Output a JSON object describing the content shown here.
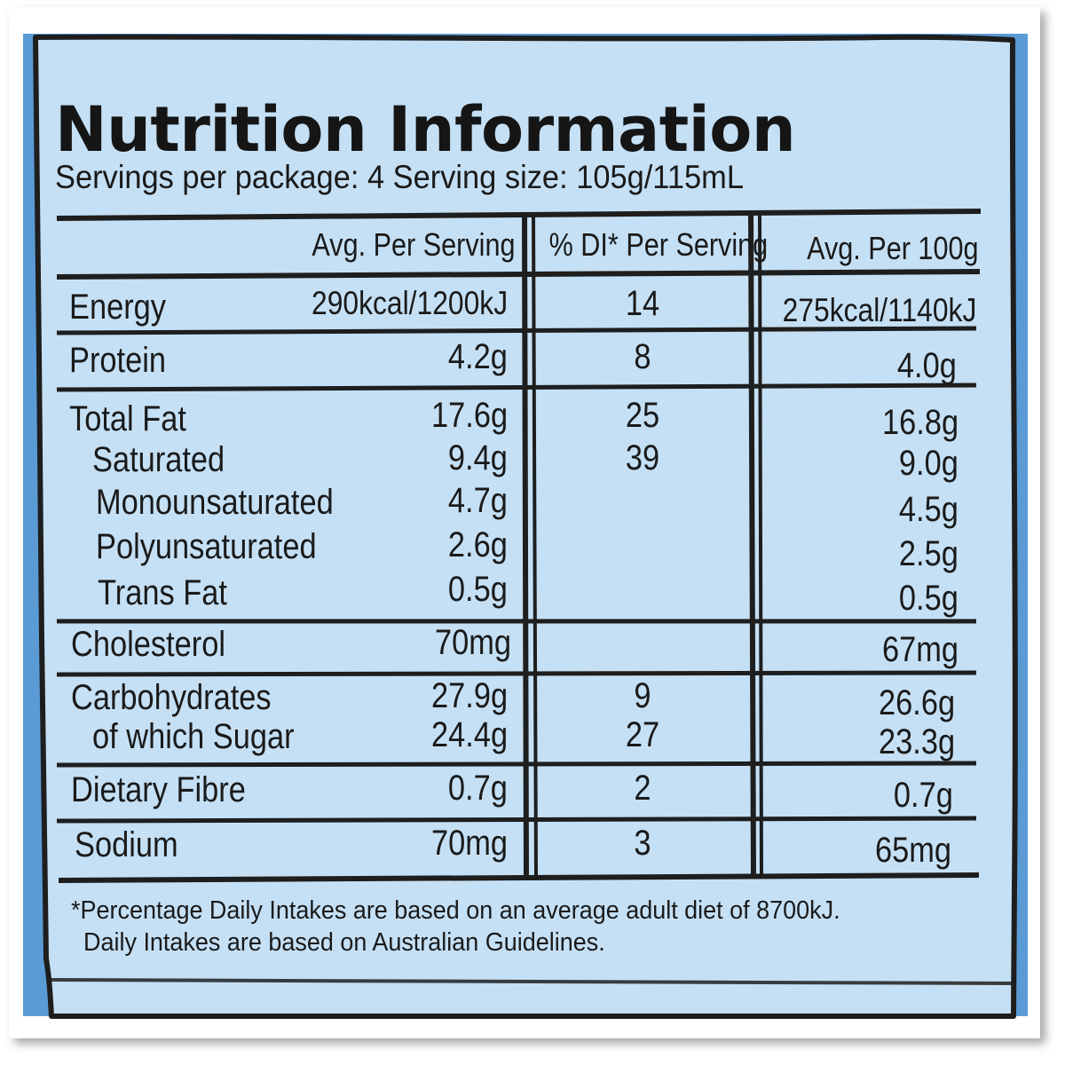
{
  "title": "Nutrition Information",
  "subtitle": "Servings per package: 4 Serving size: 105g/115mL",
  "colors": {
    "panel_fill": "#c5e0f5",
    "outer_blue": "#5b9bd5",
    "ink": "#1a1a1a",
    "frame": "#ffffff"
  },
  "headers": {
    "per_serving": "Avg. Per Serving",
    "di_per_serving": "% DI* Per Serving",
    "per_100g": "Avg. Per 100g"
  },
  "rows": {
    "energy": {
      "label": "Energy",
      "per_serving": "290kcal/1200kJ",
      "di": "14",
      "per_100g": "275kcal/1140kJ"
    },
    "protein": {
      "label": "Protein",
      "per_serving": "4.2g",
      "di": "8",
      "per_100g": "4.0g"
    },
    "total_fat": {
      "label": "Total Fat",
      "per_serving": "17.6g",
      "di": "25",
      "per_100g": "16.8g"
    },
    "saturated": {
      "label": "Saturated",
      "per_serving": "9.4g",
      "di": "39",
      "per_100g": "9.0g"
    },
    "mono": {
      "label": "Monounsaturated",
      "per_serving": "4.7g",
      "di": "",
      "per_100g": "4.5g"
    },
    "poly": {
      "label": "Polyunsaturated",
      "per_serving": "2.6g",
      "di": "",
      "per_100g": "2.5g"
    },
    "trans": {
      "label": "Trans Fat",
      "per_serving": "0.5g",
      "di": "",
      "per_100g": "0.5g"
    },
    "cholesterol": {
      "label": "Cholesterol",
      "per_serving": "70mg",
      "di": "",
      "per_100g": "67mg"
    },
    "carbohydrates": {
      "label": "Carbohydrates",
      "per_serving": "27.9g",
      "di": "9",
      "per_100g": "26.6g"
    },
    "sugar": {
      "label": "of which Sugar",
      "per_serving": "24.4g",
      "di": "27",
      "per_100g": "23.3g"
    },
    "fibre": {
      "label": "Dietary Fibre",
      "per_serving": "0.7g",
      "di": "2",
      "per_100g": "0.7g"
    },
    "sodium": {
      "label": "Sodium",
      "per_serving": "70mg",
      "di": "3",
      "per_100g": "65mg"
    }
  },
  "footnote": {
    "line1": "*Percentage Daily Intakes are based on an average adult diet of 8700kJ.",
    "line2": "Daily Intakes are based on Australian Guidelines."
  }
}
